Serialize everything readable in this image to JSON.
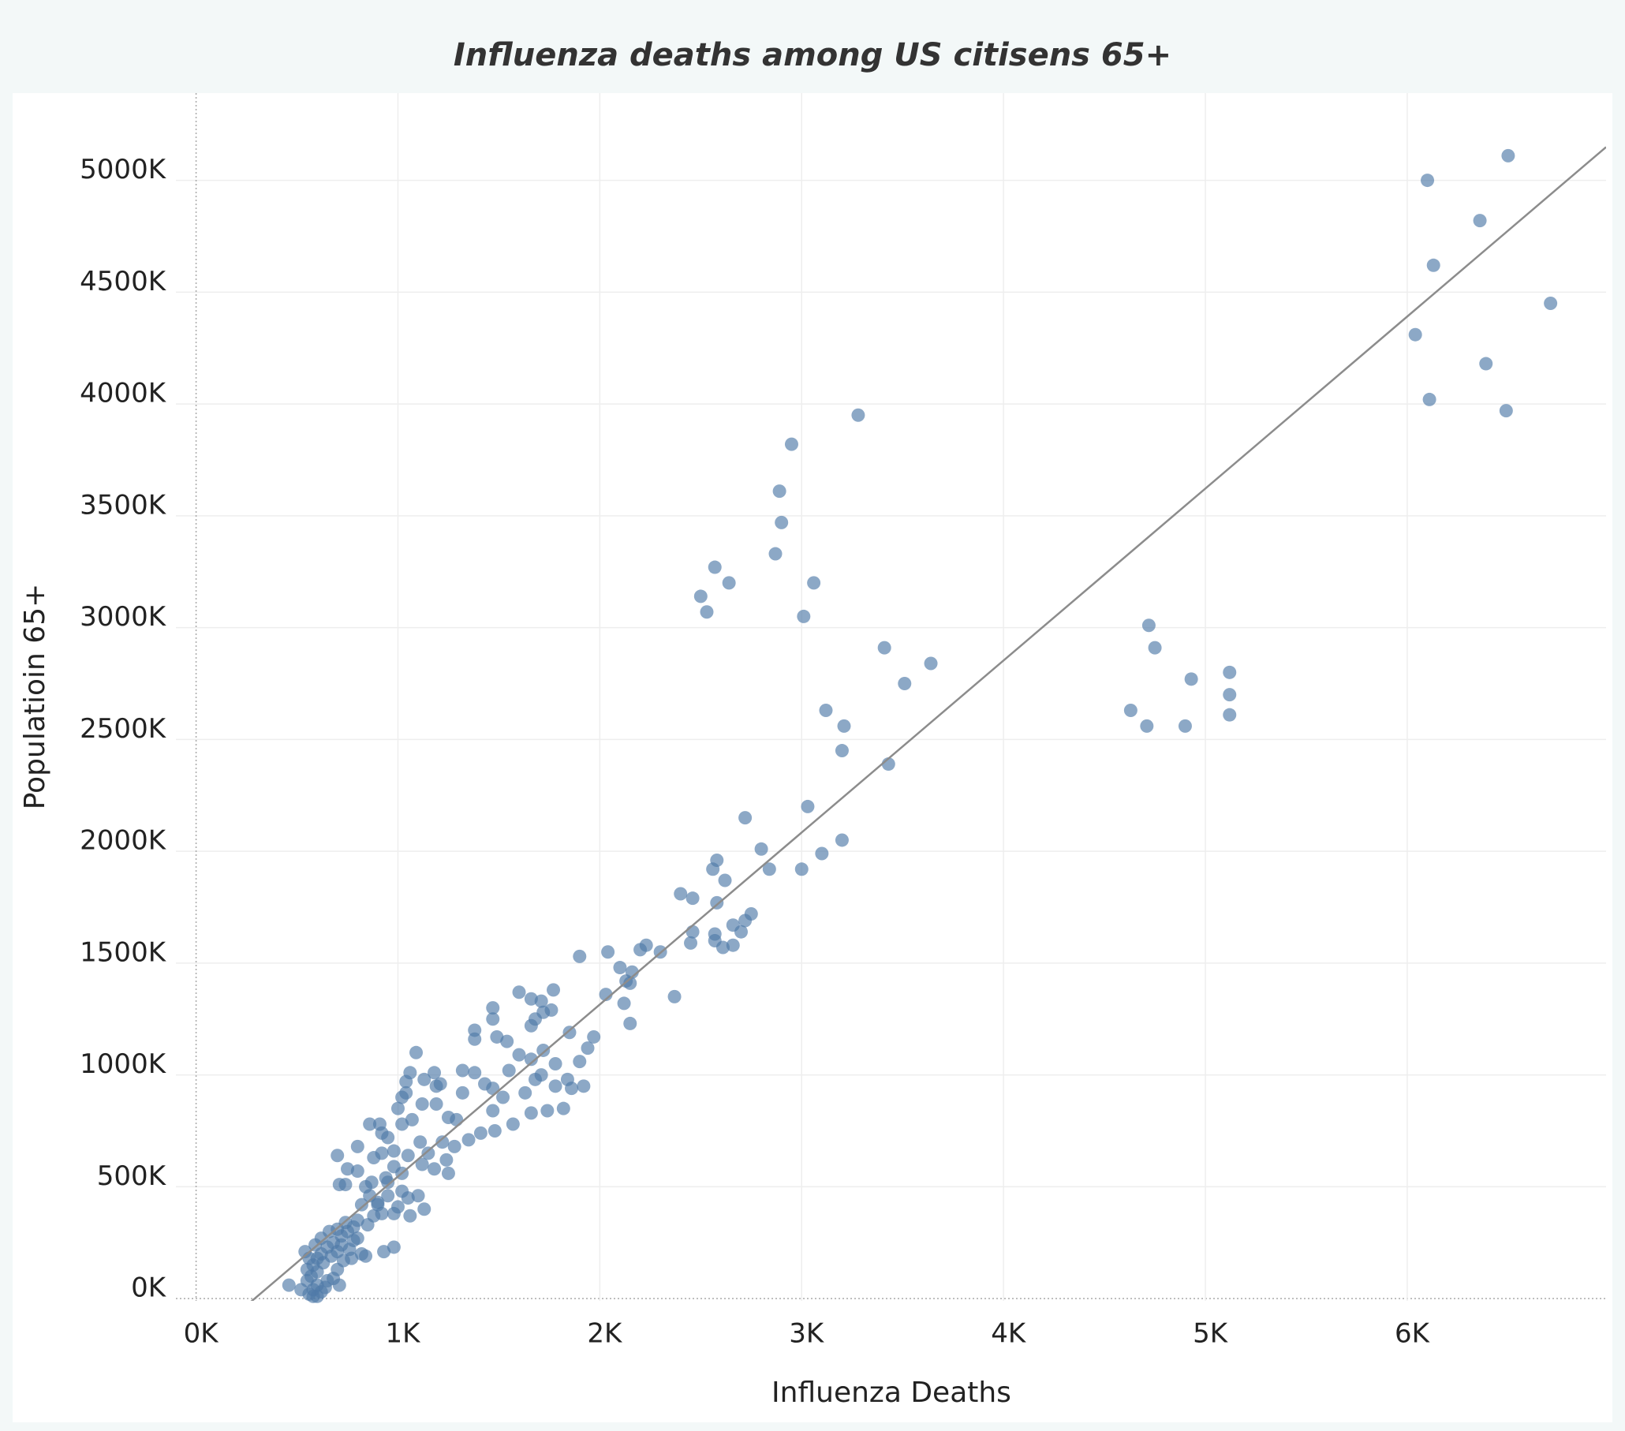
{
  "chart_data": {
    "type": "scatter",
    "title": "Influenza deaths among US citisens 65+",
    "x_label": "Influenza Deaths",
    "y_label": "Populatioin 65+",
    "color": "#4e79a7",
    "grid": true,
    "xlim": [
      -100,
      6985
    ],
    "ylim": [
      -10000,
      5390000
    ],
    "xticks": [
      {
        "value": 0,
        "label": "0K"
      },
      {
        "value": 1000,
        "label": "1K"
      },
      {
        "value": 2000,
        "label": "2K"
      },
      {
        "value": 3000,
        "label": "3K"
      },
      {
        "value": 4000,
        "label": "4K"
      },
      {
        "value": 5000,
        "label": "5K"
      },
      {
        "value": 6000,
        "label": "6K"
      }
    ],
    "yticks": [
      {
        "value": 0,
        "label": "0K"
      },
      {
        "value": 500000,
        "label": "500K"
      },
      {
        "value": 1000000,
        "label": "1000K"
      },
      {
        "value": 1500000,
        "label": "1500K"
      },
      {
        "value": 2000000,
        "label": "2000K"
      },
      {
        "value": 2500000,
        "label": "2500K"
      },
      {
        "value": 3000000,
        "label": "3000K"
      },
      {
        "value": 3500000,
        "label": "3500K"
      },
      {
        "value": 4000000,
        "label": "4000K"
      },
      {
        "value": 4500000,
        "label": "4500K"
      },
      {
        "value": 5000000,
        "label": "5000K"
      }
    ],
    "trendline": {
      "slope": 769,
      "intercept": -223000
    },
    "x": [
      6100,
      6500,
      6360,
      6130,
      6710,
      6040,
      6390,
      6110,
      6490,
      3280,
      2950,
      2890,
      2900,
      2870,
      2570,
      2640,
      3060,
      2500,
      2530,
      3010,
      3410,
      3640,
      3510,
      3120,
      3210,
      3200,
      3430,
      4720,
      4750,
      4930,
      5120,
      5120,
      4630,
      4710,
      4900,
      5120,
      3030,
      2720,
      2800,
      3200,
      3100,
      3000,
      2580,
      2560,
      2840,
      2620,
      2400,
      2460,
      2580,
      2750,
      2660,
      2720,
      2700,
      2460,
      2570,
      2450,
      2570,
      2610,
      2660,
      2230,
      2200,
      2300,
      2040,
      1900,
      2100,
      2160,
      2130,
      2150,
      2030,
      2370,
      2120,
      2150,
      1970,
      1770,
      1600,
      1660,
      1710,
      1720,
      1760,
      1680,
      1660,
      1470,
      1470,
      1380,
      1380,
      1490,
      1540,
      1600,
      1850,
      1940,
      1900,
      1780,
      1720,
      1660,
      1550,
      1840,
      1920,
      1780,
      1860,
      1820,
      1740,
      1680,
      1710,
      1630,
      1660,
      1570,
      1520,
      1470,
      1430,
      1380,
      1320,
      1470,
      1480,
      1410,
      1350,
      1320,
      1250,
      1290,
      1210,
      1180,
      1060,
      1090,
      1040,
      1130,
      1190,
      1020,
      1040,
      1120,
      1190,
      1000,
      1070,
      1020,
      860,
      910,
      920,
      950,
      1110,
      1220,
      1280,
      1150,
      1050,
      980,
      920,
      880,
      700,
      800,
      1240,
      1180,
      1120,
      1020,
      1250,
      940,
      870,
      800,
      750,
      710,
      740,
      840,
      1020,
      1100,
      1050,
      950,
      900,
      820,
      1130,
      1060,
      980,
      880,
      800,
      900,
      1000,
      950,
      980,
      920,
      860,
      750,
      720,
      780,
      680,
      650,
      700,
      620,
      600,
      580,
      550,
      600,
      570,
      550,
      600,
      580,
      560,
      580,
      620,
      650,
      700,
      730,
      680,
      630,
      670,
      720,
      760,
      800,
      820,
      660,
      540,
      460,
      520,
      600,
      640,
      710,
      770,
      840,
      980,
      930,
      740,
      850,
      780,
      700,
      620,
      590,
      560
    ],
    "y": [
      5000000,
      5110000,
      4820000,
      4620000,
      4450000,
      4310000,
      4180000,
      4020000,
      3970000,
      3950000,
      3820000,
      3610000,
      3470000,
      3330000,
      3270000,
      3200000,
      3200000,
      3140000,
      3070000,
      3050000,
      2910000,
      2840000,
      2750000,
      2630000,
      2560000,
      2450000,
      2390000,
      3010000,
      2910000,
      2770000,
      2800000,
      2700000,
      2630000,
      2560000,
      2560000,
      2610000,
      2200000,
      2150000,
      2010000,
      2050000,
      1990000,
      1920000,
      1960000,
      1920000,
      1920000,
      1870000,
      1810000,
      1790000,
      1770000,
      1720000,
      1670000,
      1690000,
      1640000,
      1640000,
      1630000,
      1590000,
      1600000,
      1570000,
      1580000,
      1580000,
      1560000,
      1550000,
      1550000,
      1530000,
      1480000,
      1460000,
      1420000,
      1410000,
      1360000,
      1350000,
      1320000,
      1230000,
      1170000,
      1380000,
      1370000,
      1340000,
      1330000,
      1280000,
      1290000,
      1250000,
      1220000,
      1300000,
      1250000,
      1200000,
      1160000,
      1170000,
      1150000,
      1090000,
      1190000,
      1120000,
      1060000,
      1050000,
      1110000,
      1070000,
      1020000,
      980000,
      950000,
      950000,
      940000,
      850000,
      840000,
      980000,
      1000000,
      920000,
      830000,
      780000,
      900000,
      940000,
      960000,
      1010000,
      1020000,
      840000,
      750000,
      740000,
      710000,
      920000,
      810000,
      800000,
      960000,
      1010000,
      1010000,
      1100000,
      970000,
      980000,
      950000,
      900000,
      920000,
      870000,
      870000,
      850000,
      800000,
      780000,
      780000,
      780000,
      740000,
      720000,
      700000,
      700000,
      680000,
      650000,
      640000,
      660000,
      650000,
      630000,
      640000,
      680000,
      620000,
      580000,
      600000,
      560000,
      560000,
      540000,
      520000,
      570000,
      580000,
      510000,
      510000,
      500000,
      480000,
      460000,
      450000,
      460000,
      430000,
      420000,
      400000,
      370000,
      380000,
      370000,
      350000,
      420000,
      410000,
      520000,
      590000,
      380000,
      460000,
      300000,
      280000,
      260000,
      250000,
      230000,
      210000,
      200000,
      180000,
      150000,
      130000,
      120000,
      100000,
      80000,
      60000,
      40000,
      20000,
      10000,
      30000,
      80000,
      130000,
      170000,
      90000,
      160000,
      190000,
      240000,
      220000,
      270000,
      200000,
      300000,
      210000,
      60000,
      40000,
      10000,
      50000,
      60000,
      180000,
      190000,
      230000,
      210000,
      340000,
      330000,
      320000,
      310000,
      270000,
      240000,
      180000
    ]
  }
}
